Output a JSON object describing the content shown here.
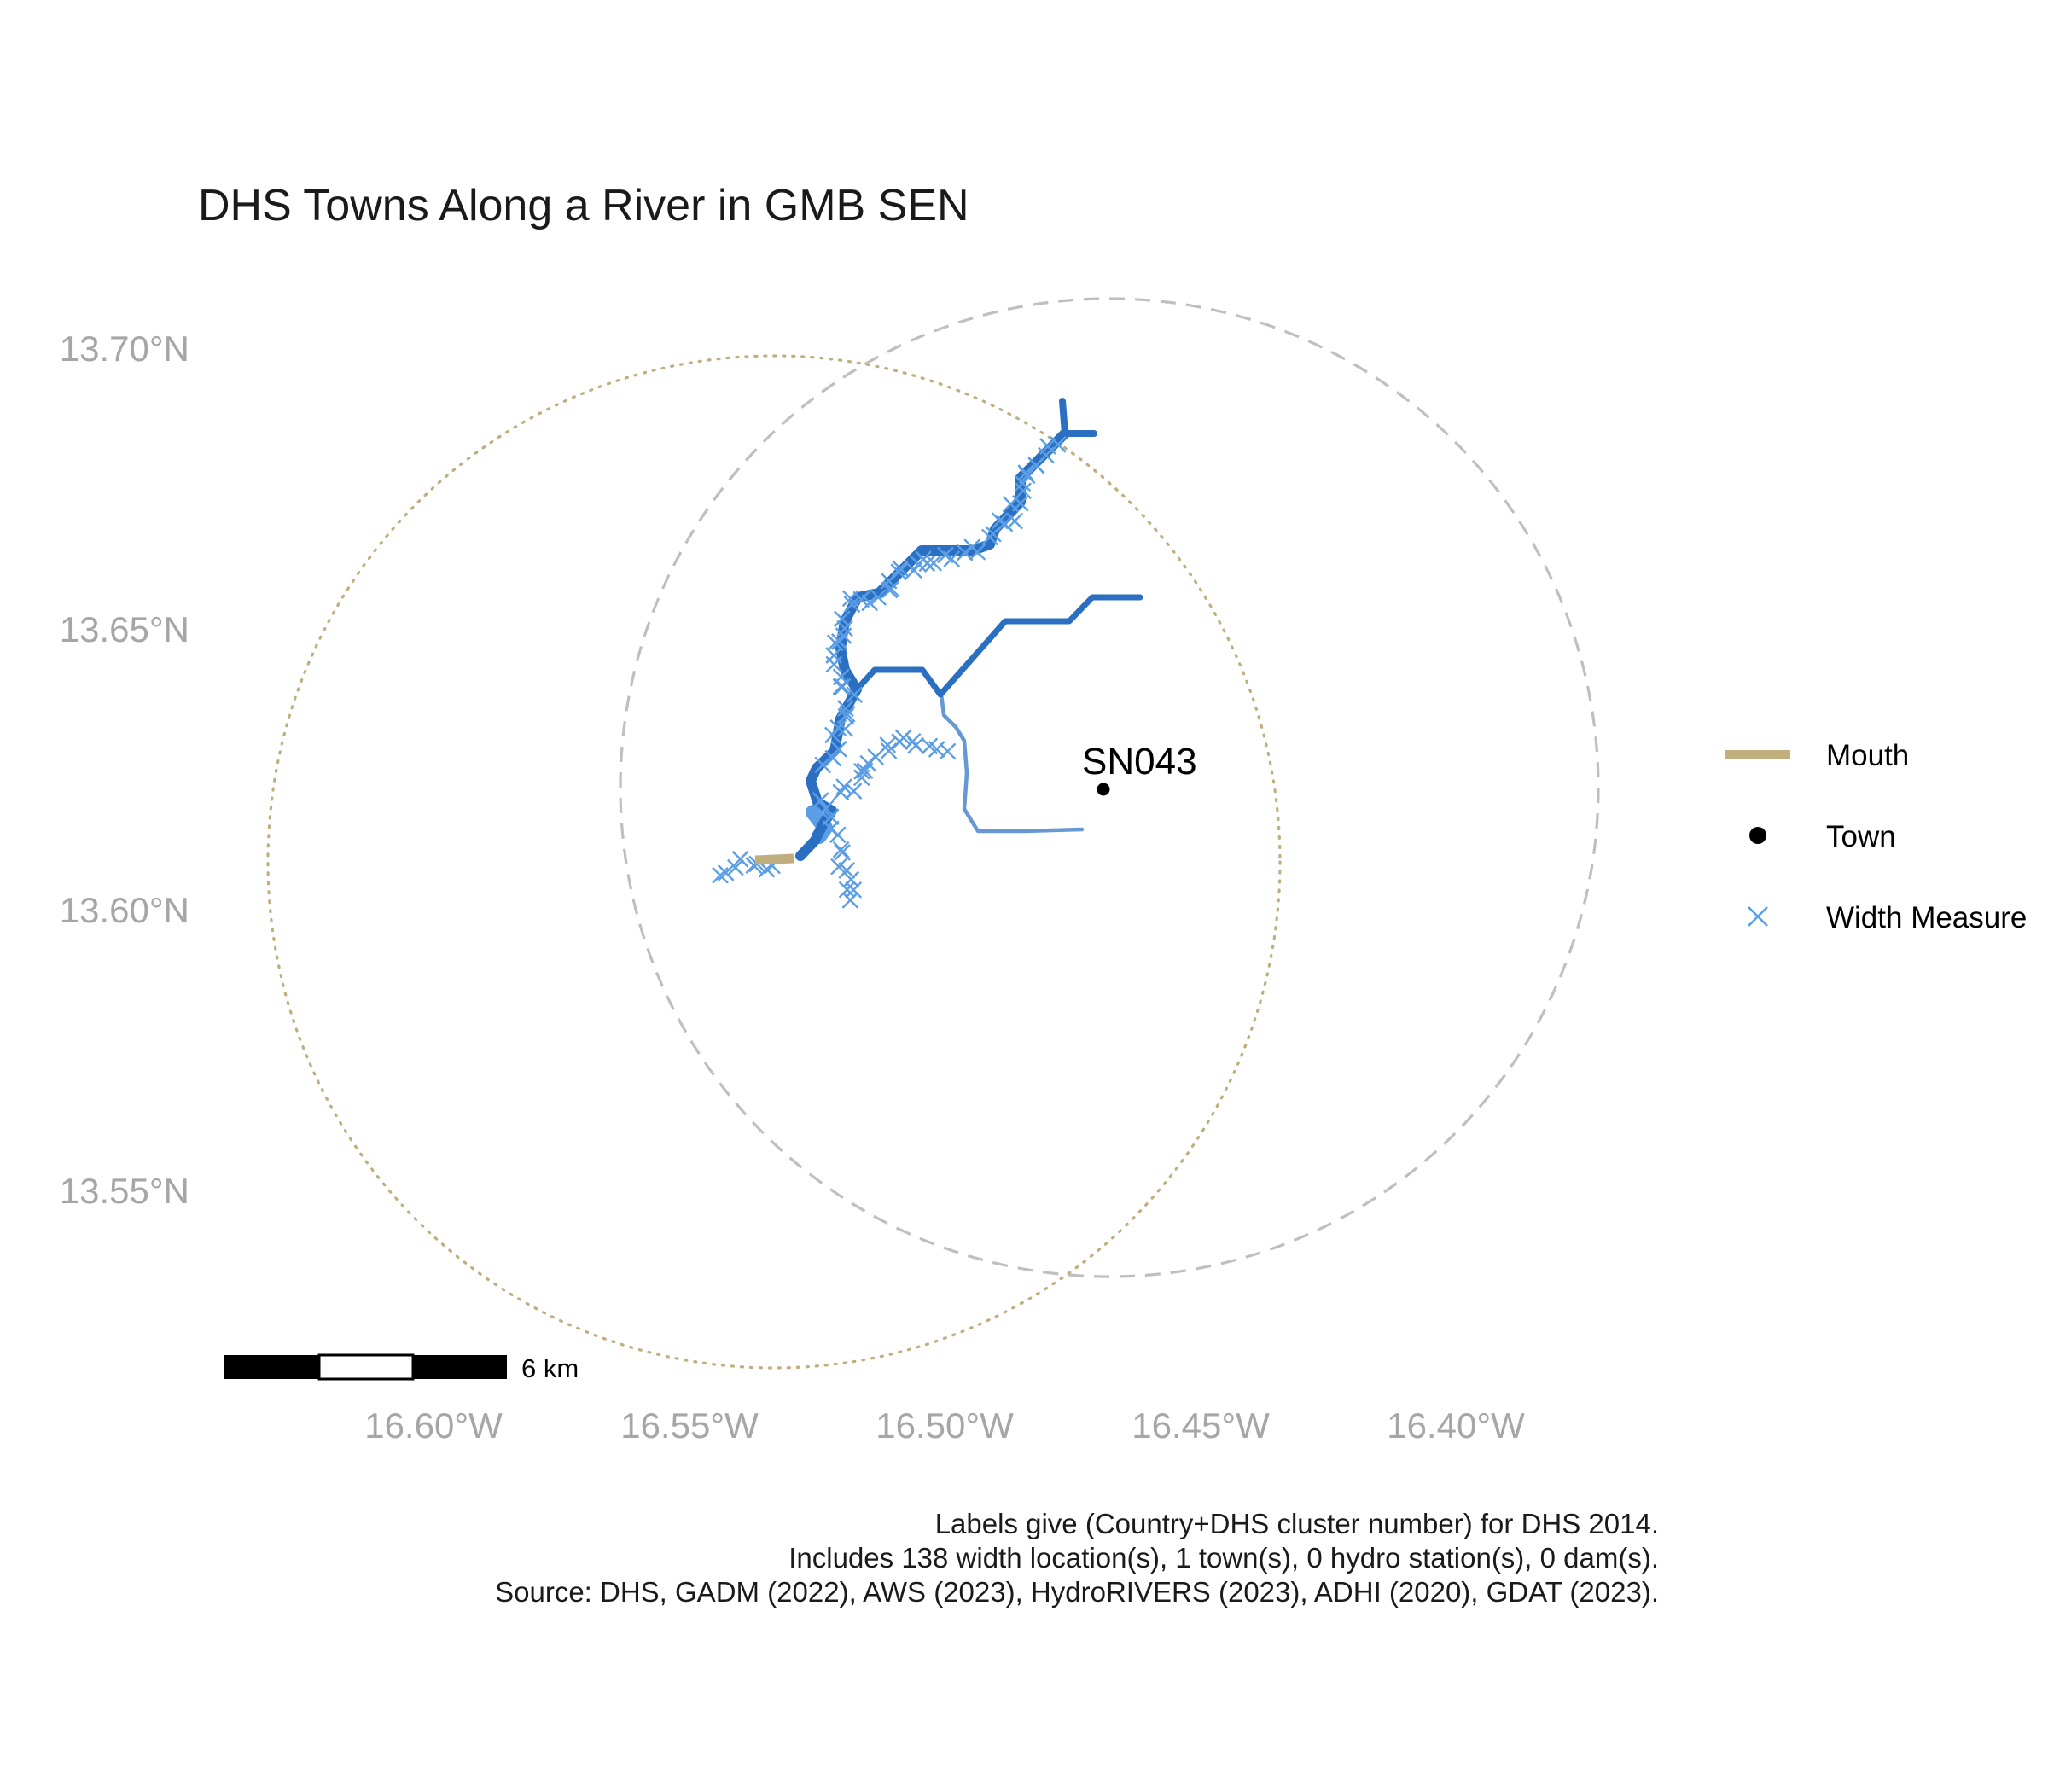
{
  "title": "DHS Towns Along a River in GMB SEN",
  "axes": {
    "lat_labels": [
      "13.70°N",
      "13.65°N",
      "13.60°N",
      "13.55°N"
    ],
    "lon_labels": [
      "16.60°W",
      "16.55°W",
      "16.50°W",
      "16.45°W",
      "16.40°W"
    ]
  },
  "town": {
    "label": "SN043",
    "lon": -16.469,
    "lat": 13.6205
  },
  "legend": {
    "items": [
      {
        "symbol": "mouth-line",
        "label": "Mouth"
      },
      {
        "symbol": "town-dot",
        "label": "Town"
      },
      {
        "symbol": "width-cross",
        "label": "Width Measure"
      }
    ]
  },
  "scalebar": {
    "label": "6 km"
  },
  "caption": [
    "Labels give (Country+DHS cluster number) for DHS 2014.",
    "Includes 138 width location(s), 1 town(s), 0 hydro station(s), 0 dam(s).",
    "Source: DHS, GADM (2022), AWS (2023), HydroRIVERS (2023), ADHI (2020), GDAT (2023)."
  ],
  "colors": {
    "river_main": "#2b6fc2",
    "river_light": "#6699d4",
    "width_measure": "#5b9ee6",
    "mouth": "#c0ae7e",
    "town": "#000000",
    "axis_text": "#a6a6a6",
    "buffer_dashed": "#bfbfbf",
    "buffer_dotted": "#c0ae7e"
  }
}
